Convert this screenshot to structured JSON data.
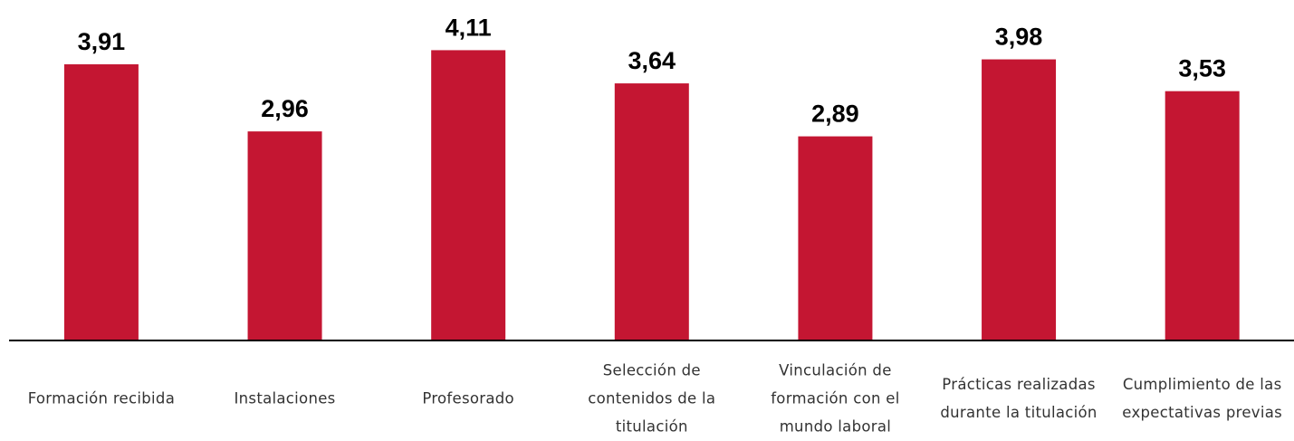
{
  "chart_data": {
    "type": "bar",
    "categories": [
      "Formación recibida",
      "Instalaciones",
      "Profesorado",
      "Selección de contenidos de la titulación",
      "Vinculación de formación con el mundo laboral",
      "Prácticas realizadas durante la titulación",
      "Cumplimiento de las expectativas previas"
    ],
    "values": [
      3.91,
      2.96,
      4.11,
      3.64,
      2.89,
      3.98,
      3.53
    ],
    "value_labels": [
      "3,91",
      "2,96",
      "4,11",
      "3,64",
      "2,89",
      "3,98",
      "3,53"
    ],
    "color": "#c41632",
    "ylim": [
      0,
      4.8
    ]
  }
}
